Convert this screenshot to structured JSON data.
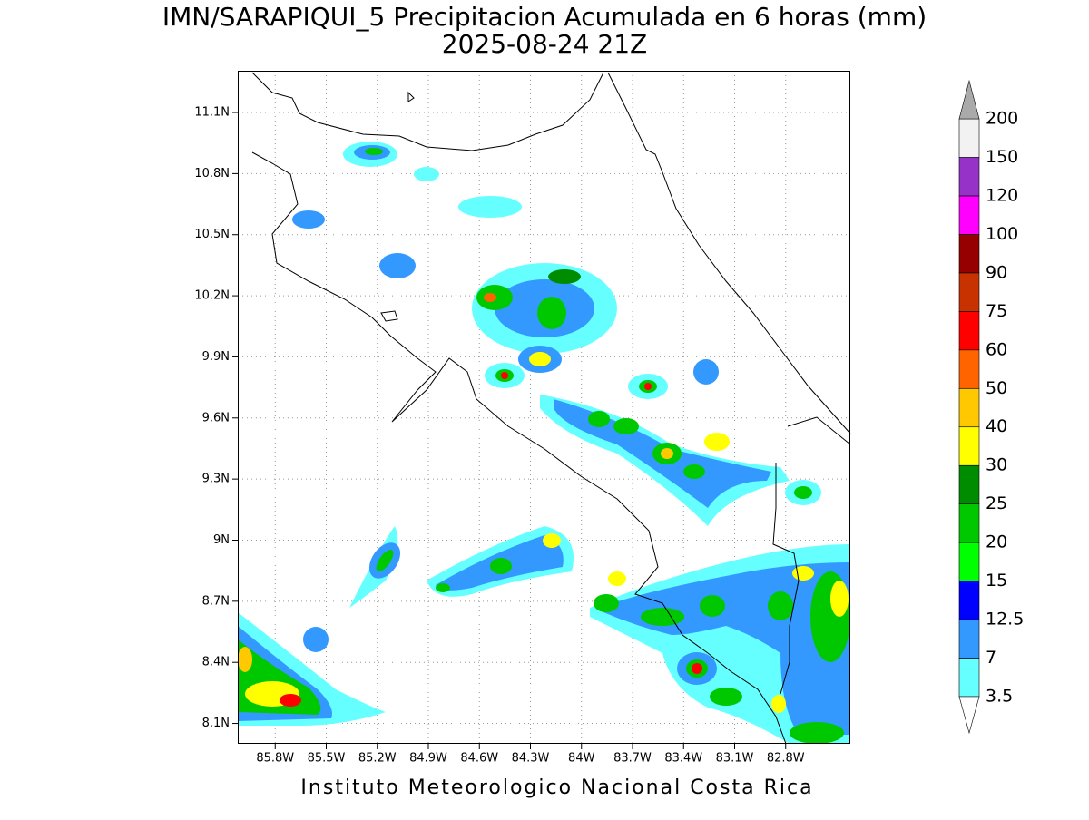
{
  "map": {
    "title": "IMN/SARAPIQUI_5 Precipitacion Acumulada en 6 horas (mm)",
    "subtitle": "2025-08-24 21Z",
    "footer": "Instituto Meteorologico Nacional Costa Rica",
    "xlim": [
      -86.02,
      -82.42
    ],
    "ylim": [
      8.0,
      11.305
    ],
    "xticks": [
      {
        "value": -85.8,
        "label": "85.8W"
      },
      {
        "value": -85.5,
        "label": "85.5W"
      },
      {
        "value": -85.2,
        "label": "85.2W"
      },
      {
        "value": -84.9,
        "label": "84.9W"
      },
      {
        "value": -84.6,
        "label": "84.6W"
      },
      {
        "value": -84.3,
        "label": "84.3W"
      },
      {
        "value": -84.0,
        "label": "84W"
      },
      {
        "value": -83.7,
        "label": "83.7W"
      },
      {
        "value": -83.4,
        "label": "83.4W"
      },
      {
        "value": -83.1,
        "label": "83.1W"
      },
      {
        "value": -82.8,
        "label": "82.8W"
      }
    ],
    "yticks": [
      {
        "value": 8.1,
        "label": "8.1N"
      },
      {
        "value": 8.4,
        "label": "8.4N"
      },
      {
        "value": 8.7,
        "label": "8.7N"
      },
      {
        "value": 9.0,
        "label": "9N"
      },
      {
        "value": 9.3,
        "label": "9.3N"
      },
      {
        "value": 9.6,
        "label": "9.6N"
      },
      {
        "value": 9.9,
        "label": "9.9N"
      },
      {
        "value": 10.2,
        "label": "10.2N"
      },
      {
        "value": 10.5,
        "label": "10.5N"
      },
      {
        "value": 10.8,
        "label": "10.8N"
      },
      {
        "value": 11.1,
        "label": "11.1N"
      }
    ],
    "grid": true,
    "colorbar": {
      "levels": [
        3.5,
        7,
        12.5,
        15,
        20,
        25,
        30,
        40,
        50,
        60,
        75,
        90,
        100,
        120,
        150,
        200
      ],
      "colors": [
        "#66ffff",
        "#3399ff",
        "#0000ff",
        "#00ff00",
        "#00c800",
        "#008c00",
        "#ffff00",
        "#ffc800",
        "#ff6400",
        "#ff0000",
        "#c83200",
        "#960000",
        "#ff00ff",
        "#9632c8",
        "#f2f2f2"
      ],
      "under_color": "#ffffff",
      "over_color": "#aaaaaa"
    }
  }
}
